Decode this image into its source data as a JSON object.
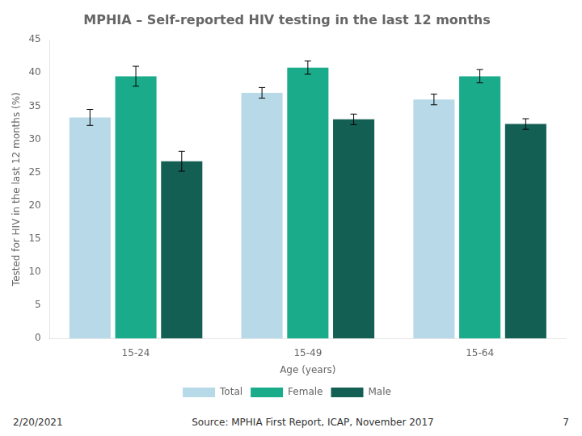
{
  "chart_data": {
    "type": "bar",
    "title": "MPHIA – Self-reported HIV testing in the last 12 months",
    "xlabel": "Age (years)",
    "ylabel": "Tested for HIV in the last 12 months (%)",
    "categories": [
      "15-24",
      "15-49",
      "15-64"
    ],
    "series": [
      {
        "name": "Total",
        "color": "#b8d9e8",
        "values": [
          33.3,
          37.0,
          36.0
        ],
        "errors": [
          1.2,
          0.8,
          0.8
        ]
      },
      {
        "name": "Female",
        "color": "#1aab8a",
        "values": [
          39.5,
          40.8,
          39.5
        ],
        "errors": [
          1.5,
          1.0,
          1.0
        ]
      },
      {
        "name": "Male",
        "color": "#145f54",
        "values": [
          26.7,
          33.0,
          32.3
        ],
        "errors": [
          1.5,
          0.8,
          0.8
        ]
      }
    ],
    "ylim": [
      0,
      45
    ],
    "yticks": [
      0,
      5,
      10,
      15,
      20,
      25,
      30,
      35,
      40,
      45
    ],
    "grid": false,
    "legend": "bottom",
    "annotations": [
      "2/20/2021",
      "Source: MPHIA First Report, ICAP, November 2017",
      "7"
    ]
  }
}
